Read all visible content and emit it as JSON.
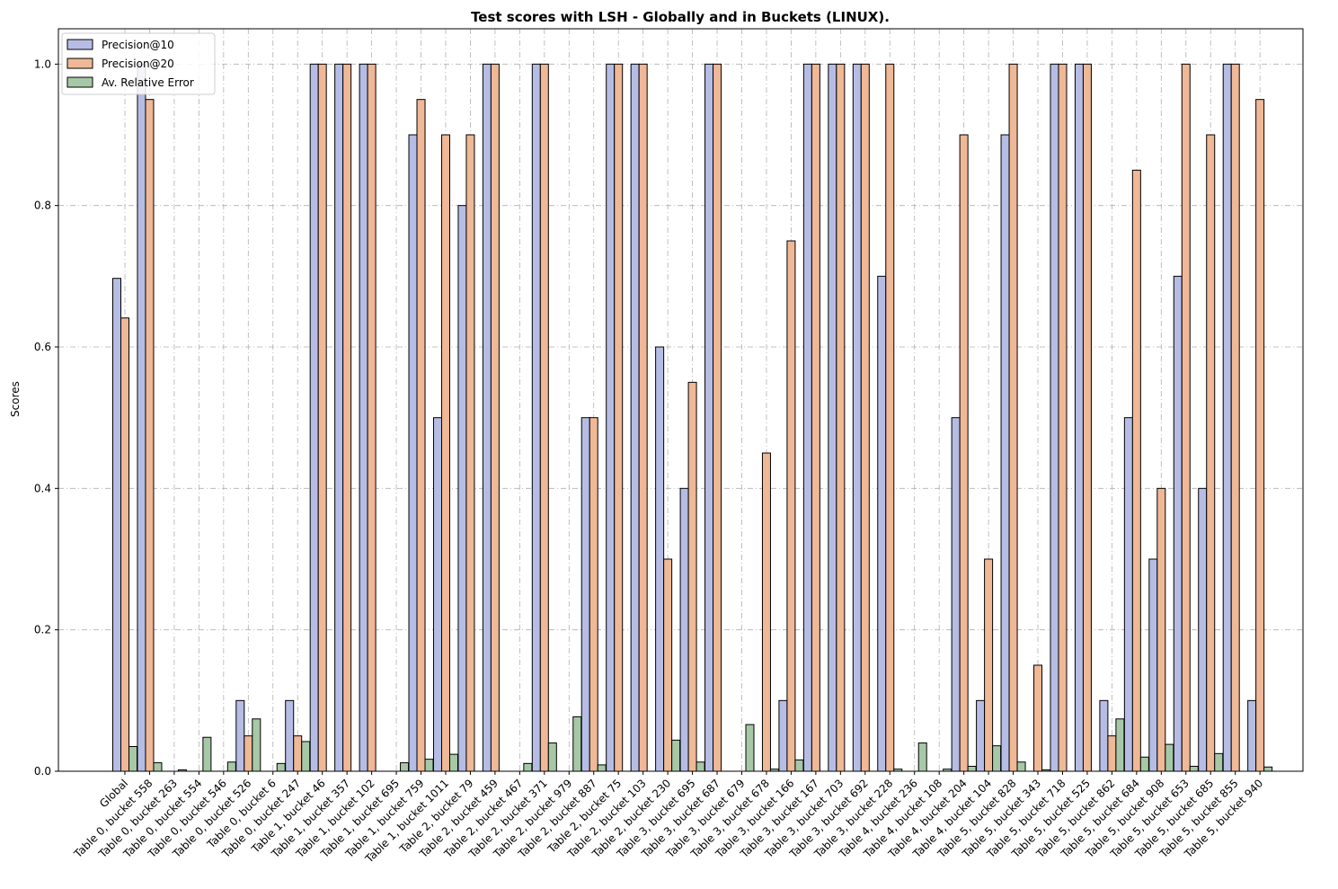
{
  "chart_data": {
    "type": "bar",
    "title": "Test scores with LSH - Globally and in Buckets (LINUX).",
    "xlabel": "",
    "ylabel": "Scores",
    "ylim": [
      0,
      1.05
    ],
    "yticks": [
      "0.0",
      "0.2",
      "0.4",
      "0.6",
      "0.8",
      "1.0"
    ],
    "grid": true,
    "legend_position": "top-left",
    "categories": [
      "Global",
      "Table 0, bucket 558",
      "Table 0, bucket 263",
      "Table 0, bucket 554",
      "Table 0, bucket 546",
      "Table 0, bucket 526",
      "Table 0, bucket 6",
      "Table 0, bucket 247",
      "Table 1, bucket 46",
      "Table 1, bucket 357",
      "Table 1, bucket 102",
      "Table 1, bucket 695",
      "Table 1, bucket 759",
      "Table 1, bucket 1011",
      "Table 2, bucket 79",
      "Table 2, bucket 459",
      "Table 2, bucket 467",
      "Table 2, bucket 371",
      "Table 2, bucket 979",
      "Table 2, bucket 887",
      "Table 2, bucket 75",
      "Table 2, bucket 103",
      "Table 2, bucket 230",
      "Table 3, bucket 695",
      "Table 3, bucket 687",
      "Table 3, bucket 679",
      "Table 3, bucket 678",
      "Table 3, bucket 166",
      "Table 3, bucket 167",
      "Table 3, bucket 703",
      "Table 3, bucket 692",
      "Table 3, bucket 228",
      "Table 4, bucket 236",
      "Table 4, bucket 108",
      "Table 4, bucket 204",
      "Table 4, bucket 104",
      "Table 5, bucket 828",
      "Table 5, bucket 343",
      "Table 5, bucket 718",
      "Table 5, bucket 525",
      "Table 5, bucket 862",
      "Table 5, bucket 684",
      "Table 5, bucket 908",
      "Table 5, bucket 653",
      "Table 5, bucket 685",
      "Table 5, bucket 855",
      "Table 5, bucket 940"
    ],
    "series": [
      {
        "name": "Precision@10",
        "color": "#b6bde5",
        "values": [
          0.697,
          1.0,
          0.0,
          0.0,
          0.0,
          0.1,
          0.0,
          0.1,
          1.0,
          1.0,
          1.0,
          0.0,
          0.9,
          0.5,
          0.8,
          1.0,
          0.0,
          1.0,
          0.0,
          0.5,
          1.0,
          1.0,
          0.6,
          0.4,
          1.0,
          0.0,
          0.0,
          0.1,
          1.0,
          1.0,
          1.0,
          0.7,
          0.0,
          0.0,
          0.5,
          0.1,
          0.9,
          0.0,
          1.0,
          1.0,
          0.1,
          0.5,
          0.3,
          0.7,
          0.4,
          1.0,
          0.1
        ]
      },
      {
        "name": "Precision@20",
        "color": "#efb896",
        "values": [
          0.641,
          0.95,
          0.0,
          0.0,
          0.0,
          0.05,
          0.0,
          0.05,
          1.0,
          1.0,
          1.0,
          0.0,
          0.95,
          0.9,
          0.9,
          1.0,
          0.0,
          1.0,
          0.0,
          0.5,
          1.0,
          1.0,
          0.3,
          0.55,
          1.0,
          0.0,
          0.45,
          0.75,
          1.0,
          1.0,
          1.0,
          1.0,
          0.0,
          0.0,
          0.9,
          0.3,
          1.0,
          0.15,
          1.0,
          1.0,
          0.05,
          0.85,
          0.4,
          1.0,
          0.9,
          1.0,
          0.95
        ]
      },
      {
        "name": "Av. Relative Error",
        "color": "#a6c8a6",
        "values": [
          0.035,
          0.012,
          0.002,
          0.048,
          0.013,
          0.074,
          0.011,
          0.042,
          0.0,
          0.0,
          0.0,
          0.012,
          0.017,
          0.024,
          0.0,
          0.0,
          0.011,
          0.04,
          0.077,
          0.009,
          0.0,
          0.0,
          0.044,
          0.013,
          0.0,
          0.066,
          0.003,
          0.016,
          0.0,
          0.0,
          0.0,
          0.003,
          0.04,
          0.003,
          0.007,
          0.036,
          0.013,
          0.002,
          0.0,
          0.0,
          0.074,
          0.02,
          0.038,
          0.007,
          0.025,
          0.0,
          0.006
        ]
      }
    ]
  }
}
